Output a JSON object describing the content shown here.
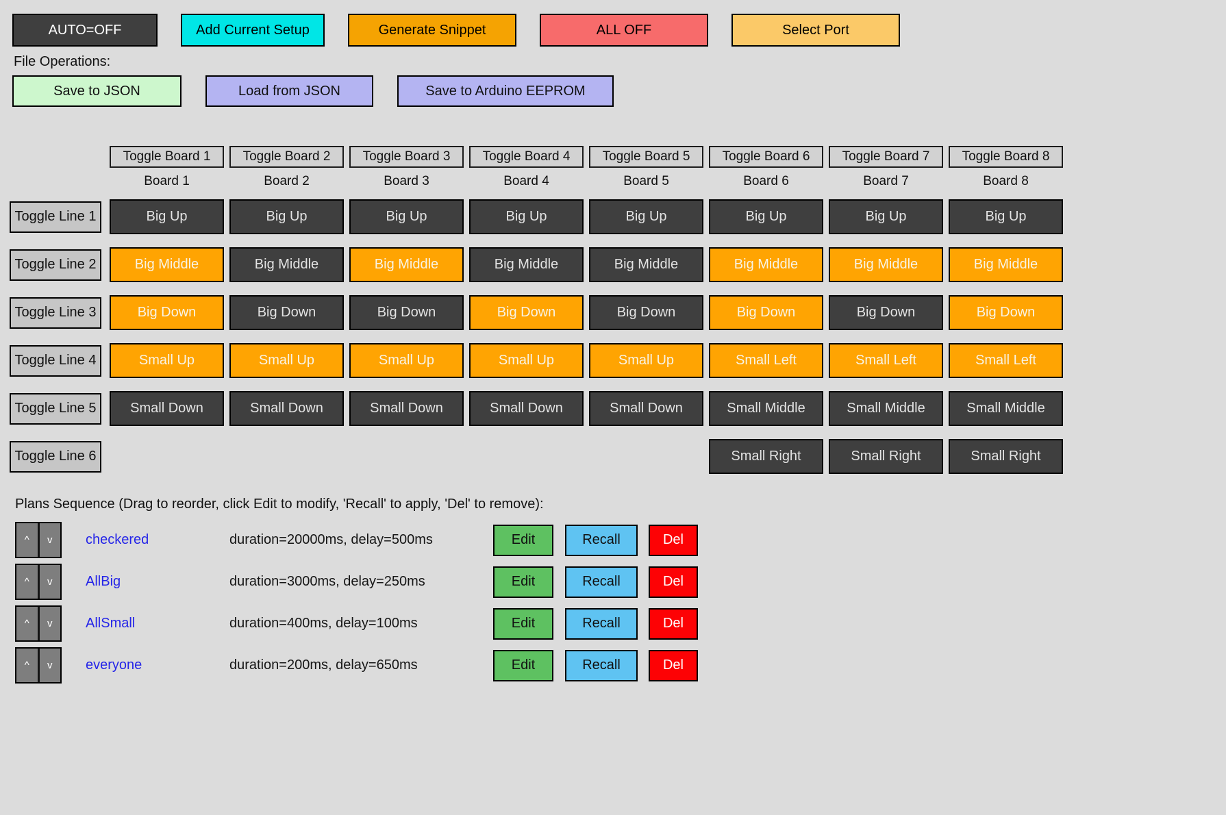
{
  "toolbar": {
    "buttons": [
      {
        "label": "AUTO=OFF",
        "bg": "#3f3f3f",
        "fg": "#ffffff"
      },
      {
        "label": "Add Current Setup",
        "bg": "#00e6e6",
        "fg": "#000000"
      },
      {
        "label": "Generate Snippet",
        "bg": "#f5a302",
        "fg": "#000000"
      },
      {
        "label": "ALL OFF",
        "bg": "#f76b6b",
        "fg": "#000000"
      },
      {
        "label": "Select Port",
        "bg": "#fbc968",
        "fg": "#000000"
      }
    ]
  },
  "file_operations": {
    "label": "File Operations:",
    "buttons": [
      {
        "label": "Save to JSON",
        "bg": "#cdf7cd"
      },
      {
        "label": "Load from JSON",
        "bg": "#b4b4f2"
      },
      {
        "label": "Save to Arduino EEPROM",
        "bg": "#b4b4f2"
      }
    ]
  },
  "board_grid": {
    "toggle_board_labels": [
      "Toggle Board 1",
      "Toggle Board 2",
      "Toggle Board 3",
      "Toggle Board 4",
      "Toggle Board 5",
      "Toggle Board 6",
      "Toggle Board 7",
      "Toggle Board 8"
    ],
    "board_labels": [
      "Board 1",
      "Board 2",
      "Board 3",
      "Board 4",
      "Board 5",
      "Board 6",
      "Board 7",
      "Board 8"
    ],
    "toggle_line_labels": [
      "Toggle Line 1",
      "Toggle Line 2",
      "Toggle Line 3",
      "Toggle Line 4",
      "Toggle Line 5",
      "Toggle Line 6"
    ],
    "colors": {
      "active": "#ffa402",
      "inactive": "#3f3f3f",
      "active_text": "#f8f3e4",
      "inactive_text": "#e3e3e3",
      "header_bg": "#d2d2d2",
      "line_bg": "#c6c6c6"
    },
    "rows": [
      {
        "cells": [
          {
            "label": "Big Up",
            "active": false
          },
          {
            "label": "Big Up",
            "active": false
          },
          {
            "label": "Big Up",
            "active": false
          },
          {
            "label": "Big Up",
            "active": false
          },
          {
            "label": "Big Up",
            "active": false
          },
          {
            "label": "Big Up",
            "active": false
          },
          {
            "label": "Big Up",
            "active": false
          },
          {
            "label": "Big Up",
            "active": false
          }
        ]
      },
      {
        "cells": [
          {
            "label": "Big Middle",
            "active": true
          },
          {
            "label": "Big Middle",
            "active": false
          },
          {
            "label": "Big Middle",
            "active": true
          },
          {
            "label": "Big Middle",
            "active": false
          },
          {
            "label": "Big Middle",
            "active": false
          },
          {
            "label": "Big Middle",
            "active": true
          },
          {
            "label": "Big Middle",
            "active": true
          },
          {
            "label": "Big Middle",
            "active": true
          }
        ]
      },
      {
        "cells": [
          {
            "label": "Big Down",
            "active": true
          },
          {
            "label": "Big Down",
            "active": false
          },
          {
            "label": "Big Down",
            "active": false
          },
          {
            "label": "Big Down",
            "active": true
          },
          {
            "label": "Big Down",
            "active": false
          },
          {
            "label": "Big Down",
            "active": true
          },
          {
            "label": "Big Down",
            "active": false
          },
          {
            "label": "Big Down",
            "active": true
          }
        ]
      },
      {
        "cells": [
          {
            "label": "Small Up",
            "active": true
          },
          {
            "label": "Small Up",
            "active": true
          },
          {
            "label": "Small Up",
            "active": true
          },
          {
            "label": "Small Up",
            "active": true
          },
          {
            "label": "Small Up",
            "active": true
          },
          {
            "label": "Small Left",
            "active": true
          },
          {
            "label": "Small Left",
            "active": true
          },
          {
            "label": "Small Left",
            "active": true
          }
        ]
      },
      {
        "cells": [
          {
            "label": "Small Down",
            "active": false
          },
          {
            "label": "Small Down",
            "active": false
          },
          {
            "label": "Small Down",
            "active": false
          },
          {
            "label": "Small Down",
            "active": false
          },
          {
            "label": "Small Down",
            "active": false
          },
          {
            "label": "Small Middle",
            "active": false
          },
          {
            "label": "Small Middle",
            "active": false
          },
          {
            "label": "Small Middle",
            "active": false
          }
        ]
      },
      {
        "cells": [
          null,
          null,
          null,
          null,
          null,
          {
            "label": "Small Right",
            "active": false
          },
          {
            "label": "Small Right",
            "active": false
          },
          {
            "label": "Small Right",
            "active": false
          }
        ]
      }
    ]
  },
  "plans": {
    "header": "Plans Sequence (Drag to reorder, click Edit to modify, 'Recall' to apply, 'Del' to remove):",
    "up_label": "^",
    "down_label": "v",
    "edit_label": "Edit",
    "recall_label": "Recall",
    "del_label": "Del",
    "colors": {
      "edit": "#5ec161",
      "recall": "#5fc3f2",
      "del": "#fd0205",
      "updown": "#7e7e7e",
      "name_text": "#2525e8"
    },
    "items": [
      {
        "name": "checkered",
        "details": "duration=20000ms, delay=500ms"
      },
      {
        "name": "AllBig",
        "details": "duration=3000ms, delay=250ms"
      },
      {
        "name": "AllSmall",
        "details": "duration=400ms, delay=100ms"
      },
      {
        "name": "everyone",
        "details": "duration=200ms, delay=650ms"
      }
    ]
  }
}
